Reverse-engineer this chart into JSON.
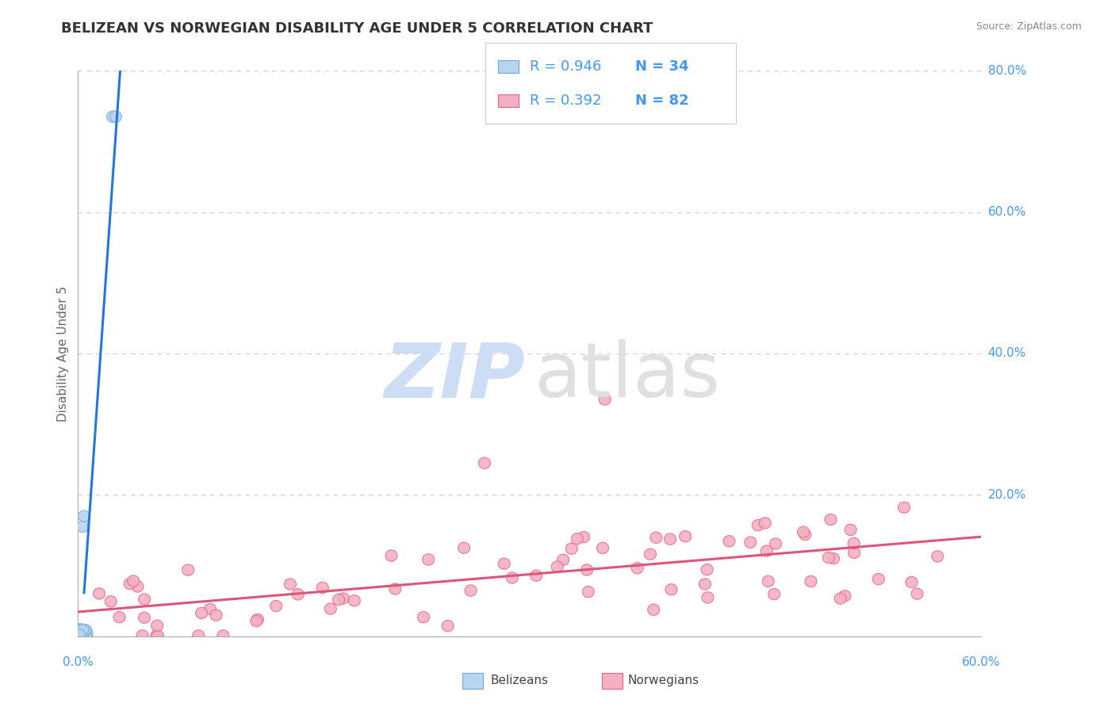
{
  "title": "BELIZEAN VS NORWEGIAN DISABILITY AGE UNDER 5 CORRELATION CHART",
  "source": "Source: ZipAtlas.com",
  "ylabel_label": "Disability Age Under 5",
  "xmin": 0.0,
  "xmax": 0.6,
  "ymin": 0.0,
  "ymax": 0.8,
  "yticks": [
    0.0,
    0.2,
    0.4,
    0.6,
    0.8
  ],
  "ytick_labels": [
    "",
    "20.0%",
    "40.0%",
    "60.0%",
    "80.0%"
  ],
  "xtick_left": "0.0%",
  "xtick_right": "60.0%",
  "belizean_R": "0.946",
  "belizean_N": "34",
  "norwegian_R": "0.392",
  "norwegian_N": "82",
  "belizean_color": "#b8d4f0",
  "belizean_edge_color": "#6aaae0",
  "belizean_line_color": "#2277dd",
  "norwegian_color": "#f5b0c0",
  "norwegian_edge_color": "#dd6688",
  "norwegian_line_color": "#dd5577",
  "title_color": "#333333",
  "axis_label_color": "#4499ee",
  "legend_text_color": "#4499ee",
  "grid_color": "#cccccc",
  "background_color": "#ffffff",
  "watermark_zip_color": "#ccddf5",
  "watermark_atlas_color": "#e0e0e0",
  "legend_border_color": "#cccccc",
  "bottom_legend_label_color": "#444444"
}
